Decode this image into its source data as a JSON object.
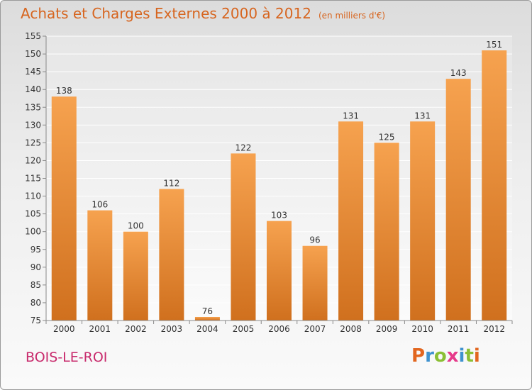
{
  "header": {
    "title": "Achats et Charges Externes 2000 à 2012",
    "subtitle": "(en milliers d'€)"
  },
  "footer": {
    "location": "BOIS-LE-ROI",
    "logo_text": "Proxiti"
  },
  "colors": {
    "bar_top": "#f6a24f",
    "bar_bottom": "#d0701e",
    "title": "#d7651f",
    "location": "#c82a6c",
    "logo_letters": [
      "#e2661f",
      "#3e92cf",
      "#8bbf35",
      "#e63a8a",
      "#3e92cf",
      "#8bbf35",
      "#e2661f"
    ]
  },
  "chart_data": {
    "type": "bar",
    "categories": [
      "2000",
      "2001",
      "2002",
      "2003",
      "2004",
      "2005",
      "2006",
      "2007",
      "2008",
      "2009",
      "2010",
      "2011",
      "2012"
    ],
    "values": [
      138,
      106,
      100,
      112,
      76,
      122,
      103,
      96,
      131,
      125,
      131,
      143,
      151
    ],
    "data_labels": [
      "138",
      "106",
      "100",
      "112",
      "76",
      "122",
      "103",
      "96",
      "131",
      "125",
      "131",
      "143",
      "151"
    ],
    "ylim": [
      75,
      155
    ],
    "yticks": [
      75,
      80,
      85,
      90,
      95,
      100,
      105,
      110,
      115,
      120,
      125,
      130,
      135,
      140,
      145,
      150,
      155
    ],
    "ytick_labels": [
      "75",
      "80",
      "85",
      "90",
      "95",
      "100",
      "105",
      "110",
      "115",
      "120",
      "125",
      "130",
      "135",
      "140",
      "145",
      "150",
      "155"
    ],
    "grid": true,
    "legend": "none"
  }
}
